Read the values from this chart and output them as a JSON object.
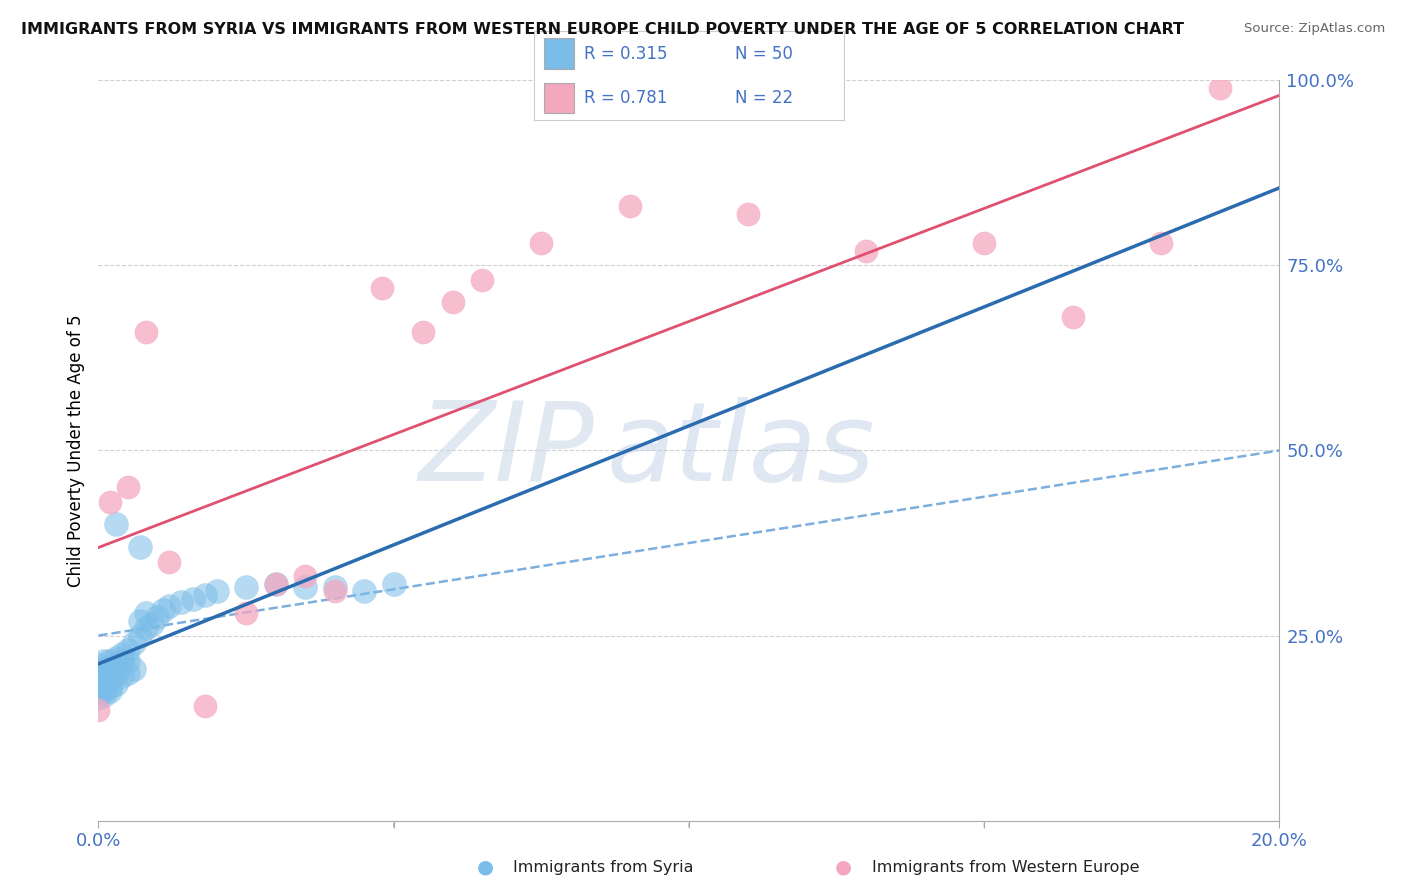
{
  "title": "IMMIGRANTS FROM SYRIA VS IMMIGRANTS FROM WESTERN EUROPE CHILD POVERTY UNDER THE AGE OF 5 CORRELATION CHART",
  "source": "Source: ZipAtlas.com",
  "ylabel": "Child Poverty Under the Age of 5",
  "R_syria": 0.315,
  "N_syria": 50,
  "R_europe": 0.781,
  "N_europe": 22,
  "color_syria": "#7abde8",
  "color_europe": "#f4a8c0",
  "color_trend_syria": "#2b6cb0",
  "color_trend_europe": "#e05070",
  "color_dashed": "#5b9bd5",
  "xlim": [
    0.0,
    0.2
  ],
  "ylim": [
    0.0,
    1.0
  ],
  "background_color": "#ffffff",
  "grid_color": "#d0d0d0",
  "watermark_zip": "ZIP",
  "watermark_atlas": "atlas",
  "legend_syria": "Immigrants from Syria",
  "legend_europe": "Immigrants from Western Europe",
  "syria_x": [
    0.0,
    0.0,
    0.0,
    0.0,
    0.0,
    0.001,
    0.001,
    0.001,
    0.001,
    0.001,
    0.001,
    0.001,
    0.002,
    0.002,
    0.002,
    0.002,
    0.002,
    0.002,
    0.003,
    0.003,
    0.003,
    0.003,
    0.004,
    0.004,
    0.004,
    0.005,
    0.005,
    0.005,
    0.006,
    0.006,
    0.007,
    0.007,
    0.008,
    0.008,
    0.009,
    0.01,
    0.011,
    0.012,
    0.014,
    0.016,
    0.018,
    0.02,
    0.025,
    0.03,
    0.035,
    0.04,
    0.045,
    0.05,
    0.007,
    0.003
  ],
  "syria_y": [
    0.175,
    0.185,
    0.195,
    0.21,
    0.165,
    0.175,
    0.185,
    0.195,
    0.205,
    0.215,
    0.17,
    0.19,
    0.18,
    0.195,
    0.205,
    0.175,
    0.19,
    0.215,
    0.185,
    0.2,
    0.21,
    0.22,
    0.195,
    0.215,
    0.225,
    0.2,
    0.215,
    0.23,
    0.205,
    0.24,
    0.25,
    0.27,
    0.26,
    0.28,
    0.265,
    0.275,
    0.285,
    0.29,
    0.295,
    0.3,
    0.305,
    0.31,
    0.315,
    0.32,
    0.315,
    0.315,
    0.31,
    0.32,
    0.37,
    0.4
  ],
  "europe_x": [
    0.0,
    0.002,
    0.005,
    0.008,
    0.012,
    0.018,
    0.025,
    0.03,
    0.035,
    0.04,
    0.048,
    0.055,
    0.06,
    0.065,
    0.075,
    0.09,
    0.11,
    0.13,
    0.15,
    0.165,
    0.18,
    0.19
  ],
  "europe_y": [
    0.15,
    0.43,
    0.45,
    0.66,
    0.35,
    0.155,
    0.28,
    0.32,
    0.33,
    0.31,
    0.72,
    0.66,
    0.7,
    0.73,
    0.78,
    0.83,
    0.82,
    0.77,
    0.78,
    0.68,
    0.78,
    0.99
  ]
}
